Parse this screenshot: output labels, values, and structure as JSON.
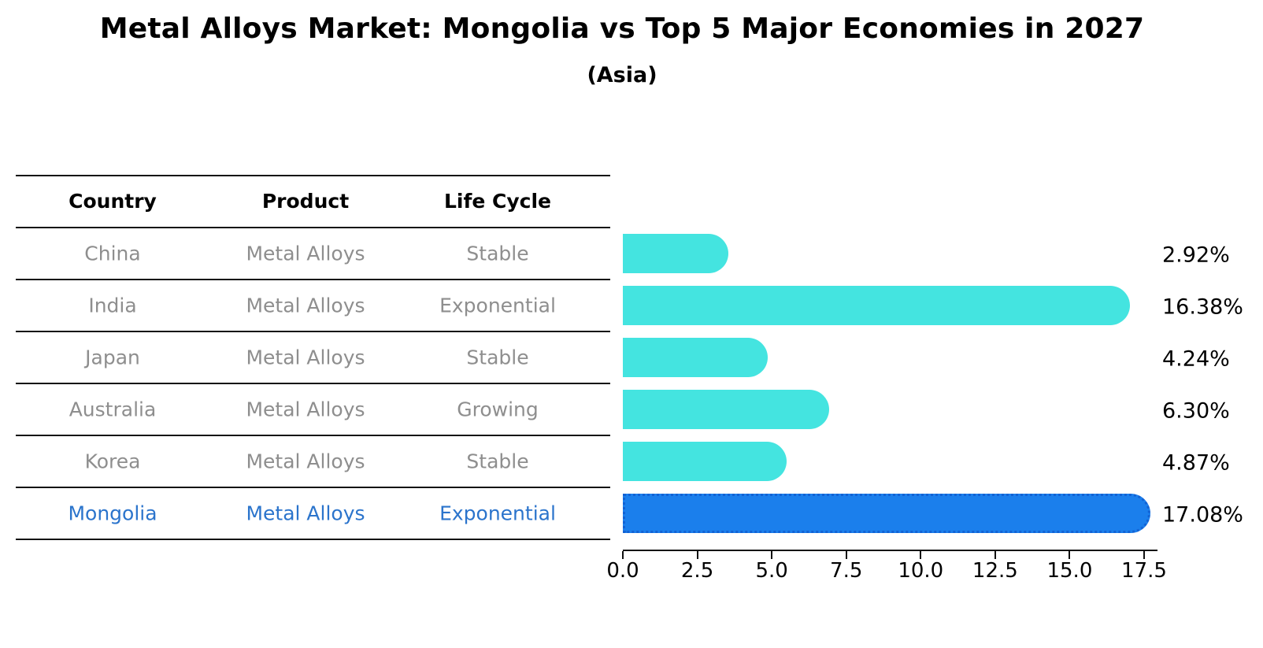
{
  "title": "Metal Alloys Market: Mongolia vs Top 5 Major Economies in 2027",
  "subtitle": "(Asia)",
  "table": {
    "headers": [
      "Country",
      "Product",
      "Life Cycle"
    ],
    "rows": [
      {
        "country": "China",
        "product": "Metal Alloys",
        "life_cycle": "Stable"
      },
      {
        "country": "India",
        "product": "Metal Alloys",
        "life_cycle": "Exponential"
      },
      {
        "country": "Japan",
        "product": "Metal Alloys",
        "life_cycle": "Stable"
      },
      {
        "country": "Australia",
        "product": "Metal Alloys",
        "life_cycle": "Growing"
      },
      {
        "country": "Korea",
        "product": "Metal Alloys",
        "life_cycle": "Stable"
      },
      {
        "country": "Mongolia",
        "product": "Metal Alloys",
        "life_cycle": "Exponential"
      }
    ],
    "highlighted_row": "Mongolia"
  },
  "chart_data": {
    "type": "bar",
    "orientation": "horizontal",
    "title": "Metal Alloys Market: Mongolia vs Top 5 Major Economies in 2027",
    "subtitle": "(Asia)",
    "categories": [
      "China",
      "India",
      "Japan",
      "Australia",
      "Korea",
      "Mongolia"
    ],
    "values": [
      2.92,
      16.38,
      4.24,
      6.3,
      4.87,
      17.08
    ],
    "value_labels": [
      "2.92%",
      "16.38%",
      "4.24%",
      "6.30%",
      "4.87%",
      "17.08%"
    ],
    "xlim": [
      0,
      17.5
    ],
    "x_tick_labels": [
      "0.0",
      "2.5",
      "5.0",
      "7.5",
      "10.0",
      "12.5",
      "15.0",
      "17.5"
    ],
    "grid": false,
    "legend": false,
    "colors": {
      "bar_default": "#44e4e0",
      "bar_highlight": "#1b7fec",
      "bar_highlight_border": "#1262d4",
      "highlight_text": "#2b74cc",
      "row_text": "#8e8e8e",
      "axis_text": "#000000"
    }
  }
}
